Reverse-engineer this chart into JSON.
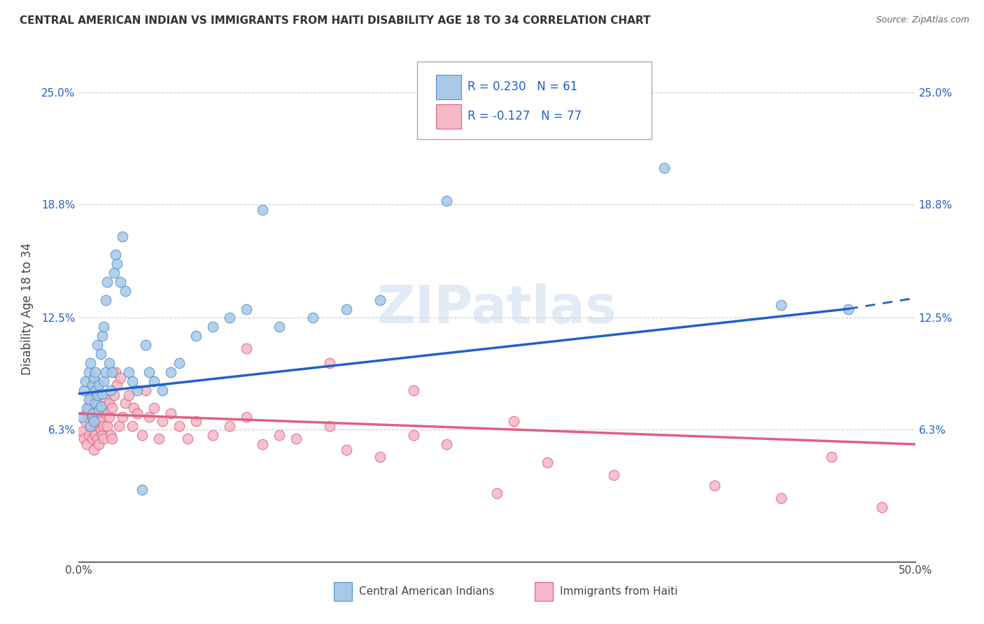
{
  "title": "CENTRAL AMERICAN INDIAN VS IMMIGRANTS FROM HAITI DISABILITY AGE 18 TO 34 CORRELATION CHART",
  "source": "Source: ZipAtlas.com",
  "ylabel": "Disability Age 18 to 34",
  "xlim": [
    0.0,
    0.5
  ],
  "ylim": [
    -0.01,
    0.27
  ],
  "ytick_positions": [
    0.063,
    0.125,
    0.188,
    0.25
  ],
  "ytick_labels": [
    "6.3%",
    "12.5%",
    "18.8%",
    "25.0%"
  ],
  "blue_R": 0.23,
  "blue_N": 61,
  "pink_R": -0.127,
  "pink_N": 77,
  "blue_label": "Central American Indians",
  "pink_label": "Immigrants from Haiti",
  "blue_color": "#a8c8e8",
  "pink_color": "#f4b8c8",
  "blue_edge": "#5090c8",
  "pink_edge": "#e06080",
  "trend_blue": "#2060cc",
  "trend_pink": "#e06080",
  "watermark": "ZIPatlas",
  "grid_color": "#cccccc",
  "background": "#ffffff",
  "blue_scatter_x": [
    0.002,
    0.003,
    0.004,
    0.005,
    0.006,
    0.006,
    0.007,
    0.007,
    0.008,
    0.008,
    0.009,
    0.009,
    0.01,
    0.01,
    0.01,
    0.011,
    0.011,
    0.012,
    0.012,
    0.013,
    0.013,
    0.014,
    0.014,
    0.015,
    0.015,
    0.016,
    0.016,
    0.017,
    0.018,
    0.019,
    0.02,
    0.021,
    0.022,
    0.023,
    0.025,
    0.026,
    0.028,
    0.03,
    0.032,
    0.035,
    0.038,
    0.04,
    0.042,
    0.045,
    0.05,
    0.055,
    0.06,
    0.07,
    0.08,
    0.09,
    0.1,
    0.11,
    0.12,
    0.14,
    0.16,
    0.18,
    0.22,
    0.28,
    0.35,
    0.42,
    0.46
  ],
  "blue_scatter_y": [
    0.07,
    0.085,
    0.09,
    0.075,
    0.08,
    0.095,
    0.065,
    0.1,
    0.072,
    0.088,
    0.068,
    0.092,
    0.078,
    0.085,
    0.095,
    0.082,
    0.11,
    0.074,
    0.088,
    0.076,
    0.105,
    0.083,
    0.115,
    0.09,
    0.12,
    0.095,
    0.135,
    0.145,
    0.1,
    0.085,
    0.095,
    0.15,
    0.16,
    0.155,
    0.145,
    0.17,
    0.14,
    0.095,
    0.09,
    0.085,
    0.03,
    0.11,
    0.095,
    0.09,
    0.085,
    0.095,
    0.1,
    0.115,
    0.12,
    0.125,
    0.13,
    0.185,
    0.12,
    0.125,
    0.13,
    0.135,
    0.19,
    0.242,
    0.208,
    0.132,
    0.13
  ],
  "pink_scatter_x": [
    0.002,
    0.003,
    0.004,
    0.005,
    0.005,
    0.006,
    0.006,
    0.007,
    0.007,
    0.008,
    0.008,
    0.009,
    0.009,
    0.01,
    0.01,
    0.01,
    0.011,
    0.011,
    0.012,
    0.012,
    0.013,
    0.013,
    0.014,
    0.014,
    0.015,
    0.015,
    0.016,
    0.016,
    0.017,
    0.018,
    0.018,
    0.019,
    0.02,
    0.02,
    0.021,
    0.022,
    0.023,
    0.024,
    0.025,
    0.026,
    0.028,
    0.03,
    0.032,
    0.033,
    0.035,
    0.038,
    0.04,
    0.042,
    0.045,
    0.048,
    0.05,
    0.055,
    0.06,
    0.065,
    0.07,
    0.08,
    0.09,
    0.1,
    0.11,
    0.12,
    0.13,
    0.15,
    0.16,
    0.18,
    0.2,
    0.22,
    0.25,
    0.28,
    0.32,
    0.38,
    0.42,
    0.45,
    0.48,
    0.1,
    0.15,
    0.2,
    0.26
  ],
  "pink_scatter_y": [
    0.062,
    0.058,
    0.068,
    0.072,
    0.055,
    0.075,
    0.06,
    0.08,
    0.065,
    0.058,
    0.07,
    0.062,
    0.052,
    0.066,
    0.06,
    0.074,
    0.058,
    0.065,
    0.07,
    0.055,
    0.063,
    0.068,
    0.076,
    0.06,
    0.065,
    0.058,
    0.072,
    0.08,
    0.065,
    0.07,
    0.078,
    0.06,
    0.075,
    0.058,
    0.082,
    0.095,
    0.088,
    0.065,
    0.092,
    0.07,
    0.078,
    0.082,
    0.065,
    0.075,
    0.072,
    0.06,
    0.085,
    0.07,
    0.075,
    0.058,
    0.068,
    0.072,
    0.065,
    0.058,
    0.068,
    0.06,
    0.065,
    0.07,
    0.055,
    0.06,
    0.058,
    0.065,
    0.052,
    0.048,
    0.06,
    0.055,
    0.028,
    0.045,
    0.038,
    0.032,
    0.025,
    0.048,
    0.02,
    0.108,
    0.1,
    0.085,
    0.068
  ]
}
